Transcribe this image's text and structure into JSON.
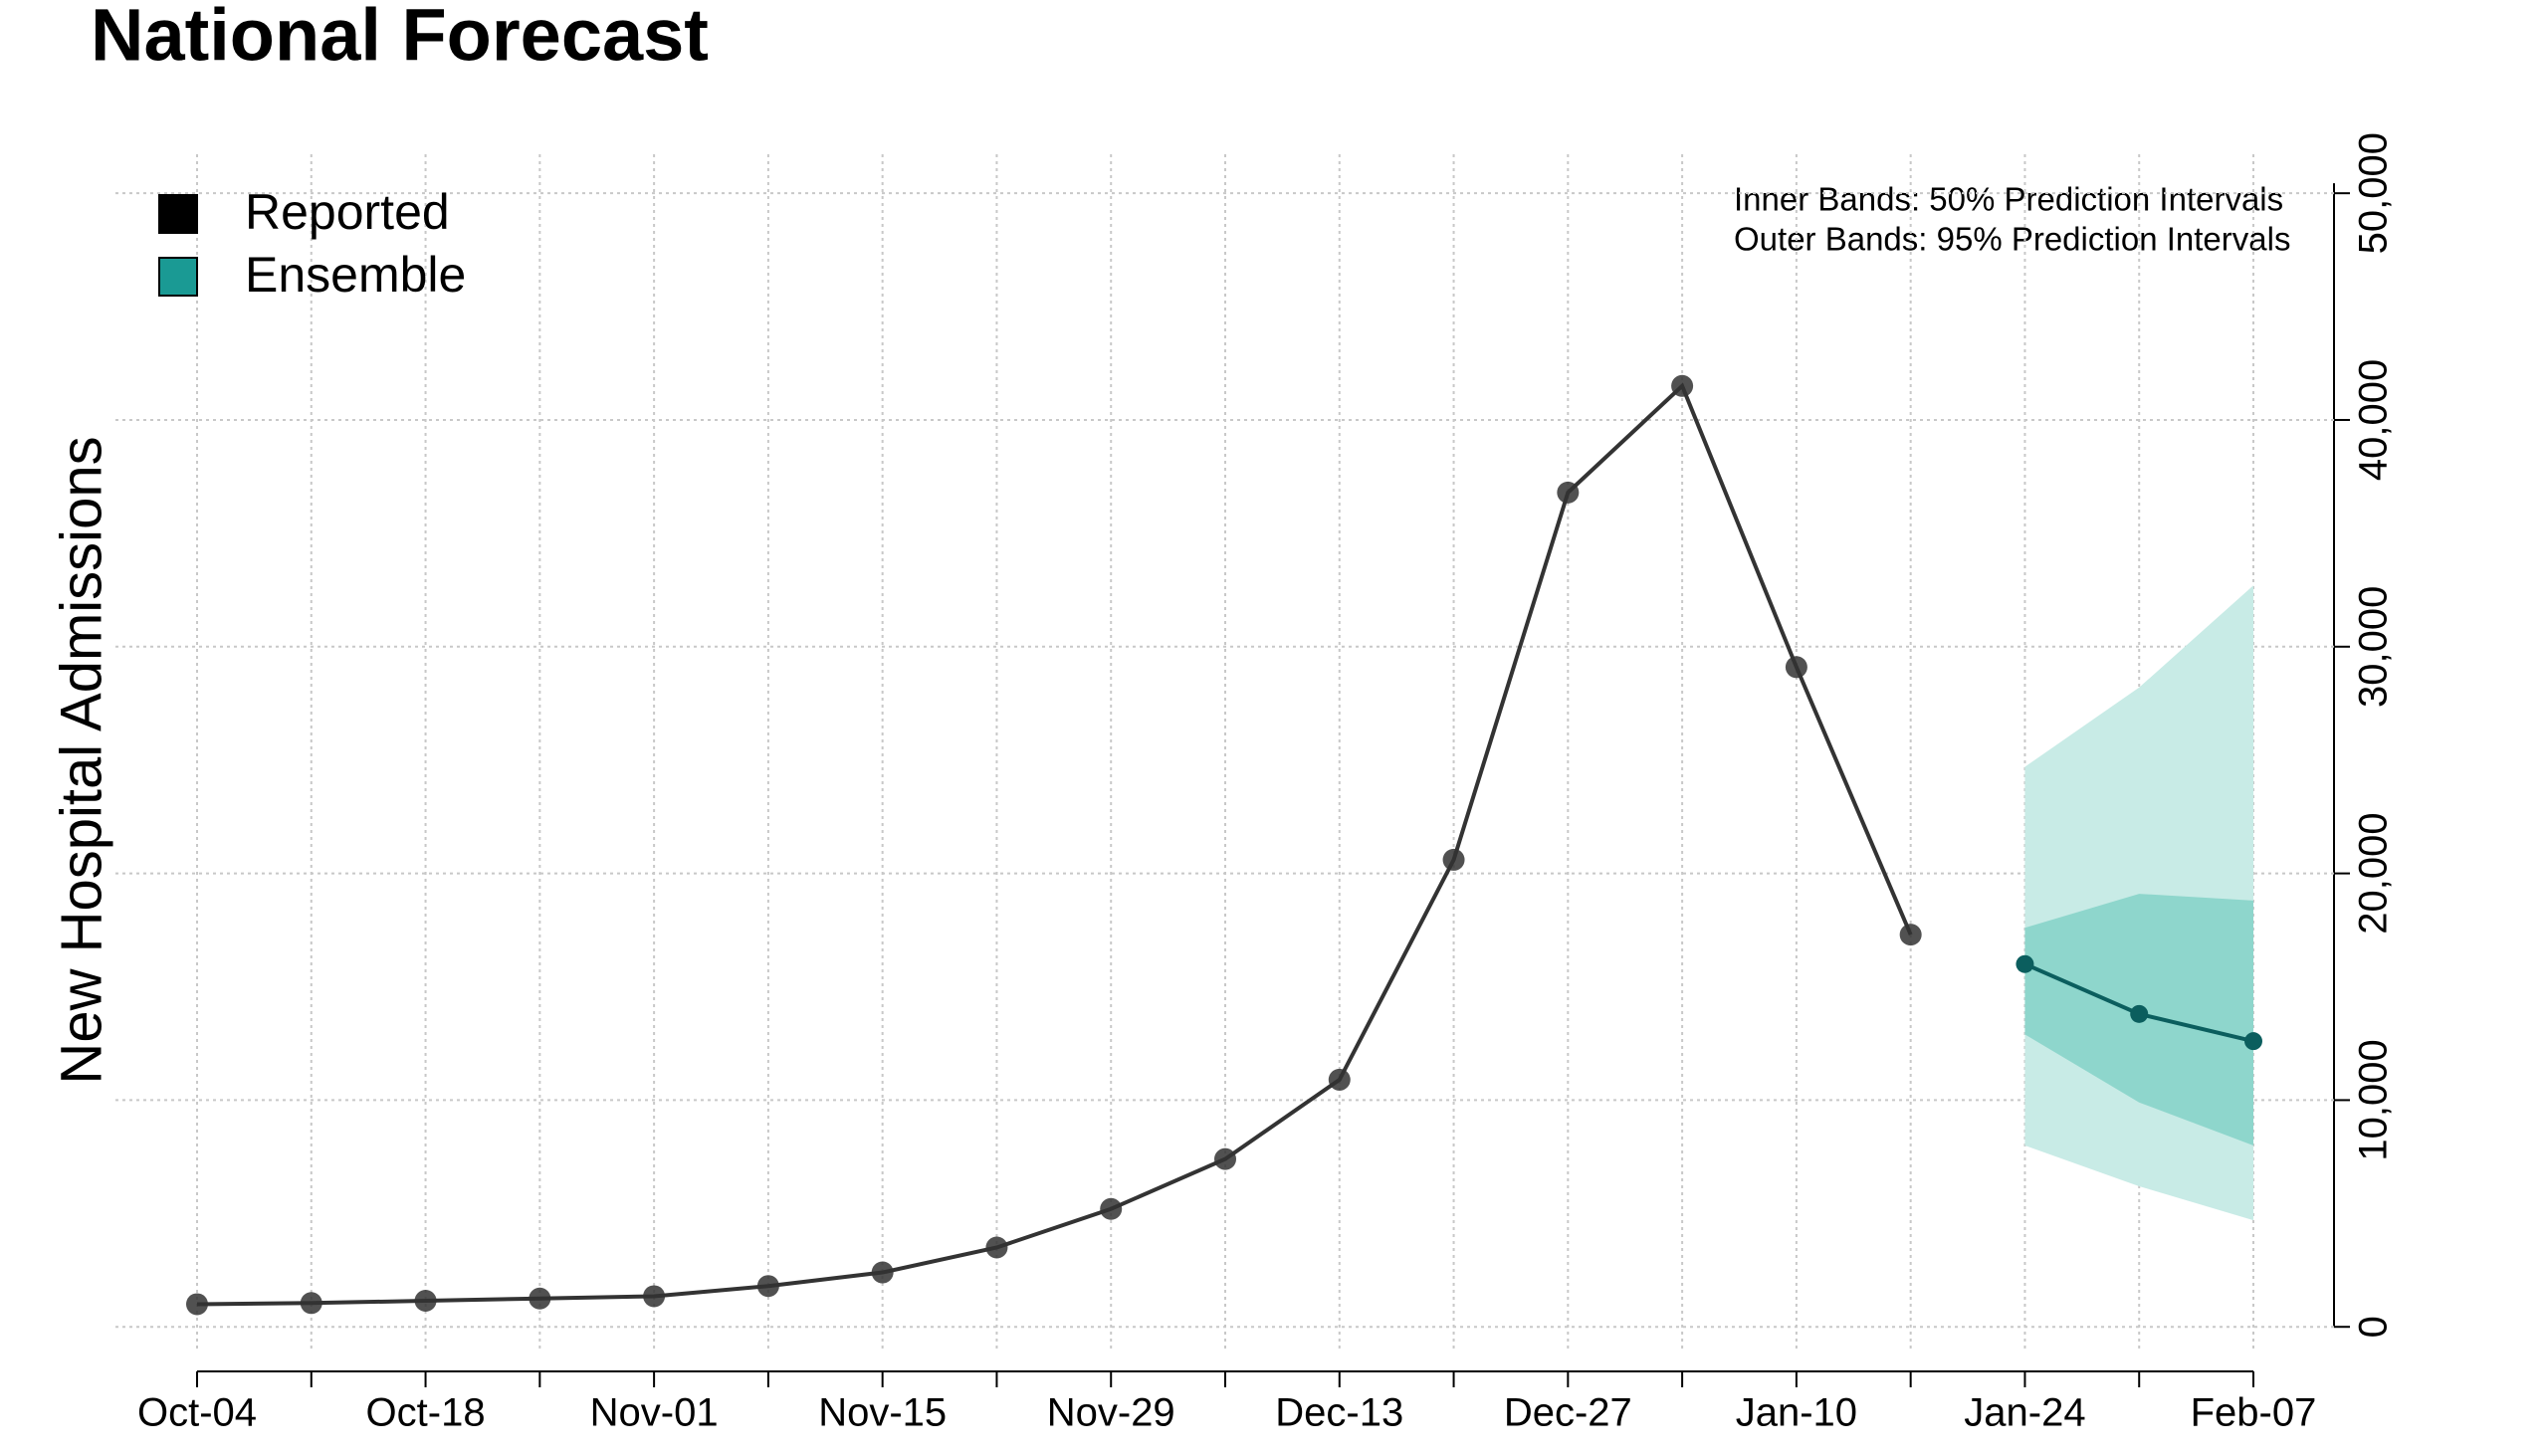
{
  "chart_data": {
    "type": "line",
    "title": "National Forecast",
    "y_label": "New Hospital Admissions",
    "annotations": [
      "Inner Bands: 50% Prediction Intervals",
      "Outer Bands: 95% Prediction Intervals"
    ],
    "categories": [
      "Oct-04",
      null,
      "Oct-18",
      null,
      "Nov-01",
      null,
      "Nov-15",
      null,
      "Nov-29",
      null,
      "Dec-13",
      null,
      "Dec-27",
      null,
      "Jan-10",
      null,
      "Jan-24",
      null,
      "Feb-07"
    ],
    "ylim": [
      -1000,
      51500
    ],
    "yticks": [
      0,
      {
        "value": 10000,
        "label": "10,000"
      },
      {
        "value": 20000,
        "label": "20,000"
      },
      {
        "value": 30000,
        "label": "30,000"
      },
      {
        "value": 40000,
        "label": "40,000"
      },
      {
        "value": 50000,
        "label": "50,000"
      }
    ],
    "grid": true,
    "legend": "top-left",
    "series": [
      {
        "name": "Reported",
        "color": "#333333",
        "values": [
          1000,
          1050,
          1150,
          1250,
          1350,
          1800,
          2400,
          3500,
          5200,
          7400,
          10900,
          20600,
          36800,
          41500,
          29100,
          17300,
          null,
          null,
          null
        ]
      },
      {
        "name": "Ensemble",
        "color": "#1a9a94",
        "line_color": "#0b5e5e",
        "values": [
          null,
          null,
          null,
          null,
          null,
          null,
          null,
          null,
          null,
          null,
          null,
          null,
          null,
          null,
          null,
          null,
          16000,
          13800,
          12600
        ],
        "lower_50": [
          null,
          null,
          null,
          null,
          null,
          null,
          null,
          null,
          null,
          null,
          null,
          null,
          null,
          null,
          null,
          null,
          12900,
          9900,
          8000
        ],
        "upper_50": [
          null,
          null,
          null,
          null,
          null,
          null,
          null,
          null,
          null,
          null,
          null,
          null,
          null,
          null,
          null,
          null,
          17600,
          19100,
          18800
        ],
        "lower_95": [
          null,
          null,
          null,
          null,
          null,
          null,
          null,
          null,
          null,
          null,
          null,
          null,
          null,
          null,
          null,
          null,
          8000,
          6200,
          4700
        ],
        "upper_95": [
          null,
          null,
          null,
          null,
          null,
          null,
          null,
          null,
          null,
          null,
          null,
          null,
          null,
          null,
          null,
          null,
          24700,
          28200,
          32700
        ],
        "band_50_color": "#8ed6cc",
        "band_95_color": "#c8ebe6"
      }
    ]
  }
}
